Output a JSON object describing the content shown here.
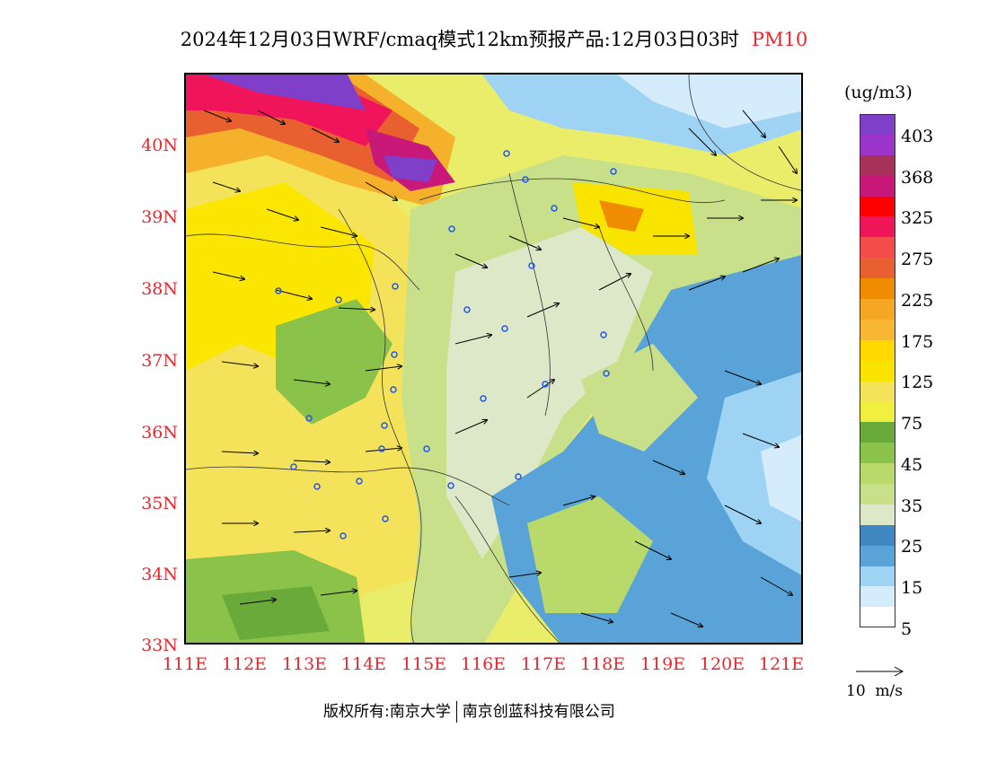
{
  "title": {
    "text": "2024年12月03日WRF/cmaq模式12km预报产品:12月03日03时",
    "variable": "PM10"
  },
  "map": {
    "lat_labels": [
      "40N",
      "39N",
      "38N",
      "37N",
      "36N",
      "35N",
      "34N",
      "33N"
    ],
    "lon_labels": [
      "111E",
      "112E",
      "113E",
      "114E",
      "115E",
      "116E",
      "117E",
      "118E",
      "119E",
      "120E",
      "121E"
    ]
  },
  "legend": {
    "unit": "(ug/m3)",
    "levels": [
      "403",
      "368",
      "325",
      "275",
      "225",
      "175",
      "125",
      "75",
      "45",
      "35",
      "25",
      "15",
      "5"
    ],
    "colors": [
      "#7f3fc8",
      "#9b34c9",
      "#a8315a",
      "#c8187a",
      "#ff0000",
      "#f0145a",
      "#f44b4b",
      "#e8602f",
      "#f08c00",
      "#f5a623",
      "#f7b733",
      "#ffd900",
      "#f9e400",
      "#f4e35a",
      "#f1f03e",
      "#6aaa3a",
      "#8bc34a",
      "#b9d96a",
      "#c8e08a",
      "#dde8c8",
      "#3f87c1",
      "#5aa3d8",
      "#9ed3f3",
      "#d4ecfb",
      "#ffffff"
    ],
    "vector_label": "10  m/s"
  },
  "footer": {
    "left": "版权所有:南京大学",
    "right": "南京创蓝科技有限公司"
  }
}
